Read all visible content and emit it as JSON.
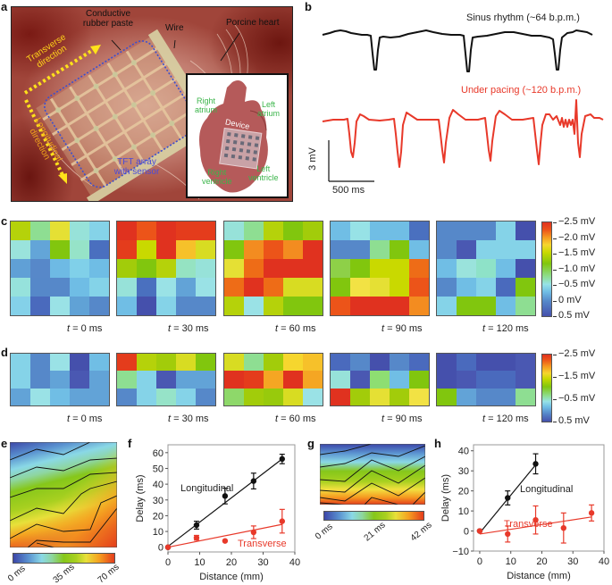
{
  "panel_labels": {
    "a": "a",
    "b": "b",
    "c": "c",
    "d": "d",
    "e": "e",
    "f": "f",
    "g": "g",
    "h": "h"
  },
  "panel_a": {
    "labels": {
      "conductive_rubber_paste": "Conductive\nrubber paste",
      "wire": "Wire",
      "porcine_heart": "Porcine heart",
      "transverse_direction": "Transverse\ndirection",
      "longitudinal_direction": "Longitudinal\ndirection",
      "tft_array": "TFT array\nwith sensor"
    },
    "inset": {
      "right_atrium": "Right\natrium",
      "left_atrium": "Left\natrium",
      "device": "Device",
      "right_ventricle": "Right\nventricle",
      "left_ventricle": "Left\nventricle"
    }
  },
  "panel_b": {
    "sinus_label": "Sinus rhythm (~64 b.p.m.)",
    "pacing_label": "Under pacing (~120 b.p.m.)",
    "scale_v": "3 mV",
    "scale_t": "500 ms",
    "colors": {
      "sinus": "#111111",
      "pacing": "#e8392a"
    }
  },
  "panel_c": {
    "time_labels": [
      "t = 0 ms",
      "t = 30 ms",
      "t = 60 ms",
      "t = 90 ms",
      "t = 120 ms"
    ],
    "colorbar_ticks": [
      "−2.5 mV",
      "−2.0 mV",
      "−1.5 mV",
      "−1.0 mV",
      "−0.5 mV",
      "0 mV",
      "0.5 mV"
    ],
    "maps": [
      [
        [
          "#b5d20a",
          "#8ede92",
          "#e5e034",
          "#97e2d9",
          "#85d3e8"
        ],
        [
          "#9ae3dc",
          "#63a5d8",
          "#82c60e",
          "#96e3c8",
          "#4a6fbf"
        ],
        [
          "#60a0d6",
          "#5788c9",
          "#6ebae4",
          "#80d0e9",
          "#6fbde5"
        ],
        [
          "#96e2dc",
          "#5688c9",
          "#5688c9",
          "#6fbde5",
          "#84d3e8"
        ],
        [
          "#84d1e9",
          "#4a6abd",
          "#9ae2e6",
          "#60a2d6",
          "#5688c9"
        ]
      ],
      [
        [
          "#e0321f",
          "#ec5419",
          "#e0321f",
          "#e43c1c",
          "#e43c1c"
        ],
        [
          "#e43c1c",
          "#c9d900",
          "#e0321f",
          "#f6c12a",
          "#d8dc22"
        ],
        [
          "#a2cc0a",
          "#81c60e",
          "#b5d20a",
          "#95e3c2",
          "#97e2d9"
        ],
        [
          "#97e2d9",
          "#4a70bf",
          "#9ae2e6",
          "#62a3d7",
          "#9ae2e6"
        ],
        [
          "#70bee5",
          "#4550ac",
          "#85d3e8",
          "#5688c9",
          "#5688c9"
        ]
      ],
      [
        [
          "#97e2d9",
          "#8ede92",
          "#b5d20a",
          "#81c60e",
          "#a2cc0a"
        ],
        [
          "#81c60e",
          "#f38c20",
          "#ec5419",
          "#f38c20",
          "#e0321f"
        ],
        [
          "#e5e034",
          "#ee6c17",
          "#e0321f",
          "#e0321f",
          "#e0321f"
        ],
        [
          "#ee6c17",
          "#e0321f",
          "#ee6c17",
          "#d8dc22",
          "#d8dc22"
        ],
        [
          "#b5d20a",
          "#9ae2e6",
          "#b5d20a",
          "#81c60e",
          "#81c60e"
        ]
      ],
      [
        [
          "#70bee5",
          "#97e2e6",
          "#70bee5",
          "#70bee5",
          "#4a70bf"
        ],
        [
          "#5688c9",
          "#5688c9",
          "#8ede92",
          "#81c60e",
          "#70bee5"
        ],
        [
          "#8ed048",
          "#81c60e",
          "#c9d900",
          "#c9d900",
          "#ee6c17"
        ],
        [
          "#81c60e",
          "#f2e244",
          "#e5e034",
          "#c9d900",
          "#ec5419"
        ],
        [
          "#ec5419",
          "#e0321f",
          "#e0321f",
          "#e0321f",
          "#f38c20"
        ]
      ],
      [
        [
          "#5688c9",
          "#5688c9",
          "#5688c9",
          "#85d3e8",
          "#4550ac"
        ],
        [
          "#5688c9",
          "#4a58b2",
          "#85d3e8",
          "#85d3e8",
          "#85d3e8"
        ],
        [
          "#70bee5",
          "#9ae3dc",
          "#8ee2c8",
          "#70bee5",
          "#4550ac"
        ],
        [
          "#5688c9",
          "#70bee5",
          "#85d3e8",
          "#4a6abd",
          "#81c60e"
        ],
        [
          "#85d3e8",
          "#81c60e",
          "#81c60e",
          "#70bee5",
          "#8ede92"
        ]
      ]
    ]
  },
  "panel_d": {
    "time_labels": [
      "t = 0 ms",
      "t = 30 ms",
      "t = 60 ms",
      "t = 90 ms",
      "t = 120 ms"
    ],
    "colorbar_ticks": [
      "−2.5 mV",
      "−1.5 mV",
      "−0.5 mV",
      "0.5 mV"
    ],
    "maps": [
      [
        [
          "#85d3e8",
          "#5688c9",
          "#9ae2e6",
          "#4550ac",
          "#70bee5"
        ],
        [
          "#85d3e8",
          "#5688c9",
          "#62a3d7",
          "#4a58b2",
          "#62a3d7"
        ],
        [
          "#62a3d7",
          "#9ae2e6",
          "#70bee5",
          "#62a3d7",
          "#62a3d7"
        ]
      ],
      [
        [
          "#e43c1c",
          "#b5d20a",
          "#a2cc0a",
          "#d8dc22",
          "#81c60e"
        ],
        [
          "#8ede92",
          "#85d3e8",
          "#4a58b2",
          "#62a3d7",
          "#62a3d7"
        ],
        [
          "#5688c9",
          "#85d3e8",
          "#96e3c8",
          "#85d3e8",
          "#5688c9"
        ]
      ],
      [
        [
          "#d8dc22",
          "#8ede92",
          "#a2cc0a",
          "#f6d62e",
          "#f6c12a"
        ],
        [
          "#e0321f",
          "#e43c1c",
          "#f5a623",
          "#e0321f",
          "#f5a623"
        ],
        [
          "#8ed86a",
          "#a2cc0a",
          "#98ca0c",
          "#d8dc22",
          "#9ae2e6"
        ]
      ],
      [
        [
          "#4a6abd",
          "#5688c9",
          "#4550ac",
          "#5688c9",
          "#4a6abd"
        ],
        [
          "#97e2d9",
          "#4a58b2",
          "#8ede72",
          "#70bee5",
          "#81c60e"
        ],
        [
          "#e0321f",
          "#a2cc0a",
          "#e5e034",
          "#a2cc0a",
          "#f2e244"
        ]
      ],
      [
        [
          "#4550ac",
          "#4a6abd",
          "#4550ac",
          "#4550ac",
          "#4a58b2"
        ],
        [
          "#4550ac",
          "#4a58b2",
          "#4a6abd",
          "#4a6abd",
          "#4a58b2"
        ],
        [
          "#81c60e",
          "#62a3d7",
          "#5688c9",
          "#5688c9",
          "#8ede92"
        ]
      ]
    ]
  },
  "panel_e": {
    "colorbar_ticks": [
      "0 ms",
      "35 ms",
      "70 ms"
    ]
  },
  "panel_g": {
    "colorbar_ticks": [
      "0 ms",
      "21 ms",
      "42 ms"
    ]
  },
  "chart_data": [
    {
      "panel": "f",
      "type": "scatter",
      "xlabel": "Distance (mm)",
      "ylabel": "Delay (ms)",
      "xlim": [
        0,
        40
      ],
      "ylim": [
        -3,
        65
      ],
      "xticks": [
        0,
        10,
        20,
        30,
        40
      ],
      "yticks": [
        0,
        10,
        20,
        30,
        40,
        50,
        60
      ],
      "series": [
        {
          "name": "Longitudinal",
          "color": "#111111",
          "x": [
            0,
            9,
            18,
            27,
            36
          ],
          "y": [
            0,
            14,
            32.5,
            42,
            56
          ],
          "err": [
            0,
            2.5,
            5,
            5,
            3
          ],
          "fit": [
            [
              0,
              0.5
            ],
            [
              36,
              56
            ]
          ]
        },
        {
          "name": "Transverse",
          "color": "#e8392a",
          "x": [
            0,
            9,
            18,
            27,
            36
          ],
          "y": [
            0,
            6,
            4,
            9.5,
            16.5
          ],
          "err": [
            0,
            1.5,
            0,
            4,
            7.5
          ],
          "fit": [
            [
              0,
              0
            ],
            [
              36,
              14.5
            ]
          ]
        }
      ]
    },
    {
      "panel": "h",
      "type": "scatter",
      "xlabel": "Distance (mm)",
      "ylabel": "Delay (ms)",
      "xlim": [
        -2,
        40
      ],
      "ylim": [
        -10,
        43
      ],
      "xticks": [
        0,
        10,
        20,
        30,
        40
      ],
      "yticks": [
        -10,
        0,
        10,
        20,
        30,
        40
      ],
      "series": [
        {
          "name": "Longitudinal",
          "color": "#111111",
          "x": [
            0,
            9,
            18
          ],
          "y": [
            0,
            16.5,
            33.5
          ],
          "err": [
            0,
            3.5,
            5
          ],
          "fit": [
            [
              0,
              -1
            ],
            [
              18,
              33
            ]
          ]
        },
        {
          "name": "Transverse",
          "color": "#e8392a",
          "x": [
            0,
            9,
            18,
            27,
            36
          ],
          "y": [
            0,
            -1.5,
            5.5,
            1.5,
            9
          ],
          "err": [
            0,
            4,
            7,
            7.5,
            4
          ],
          "fit": [
            [
              0,
              -1.5
            ],
            [
              36,
              7
            ]
          ]
        }
      ]
    }
  ]
}
